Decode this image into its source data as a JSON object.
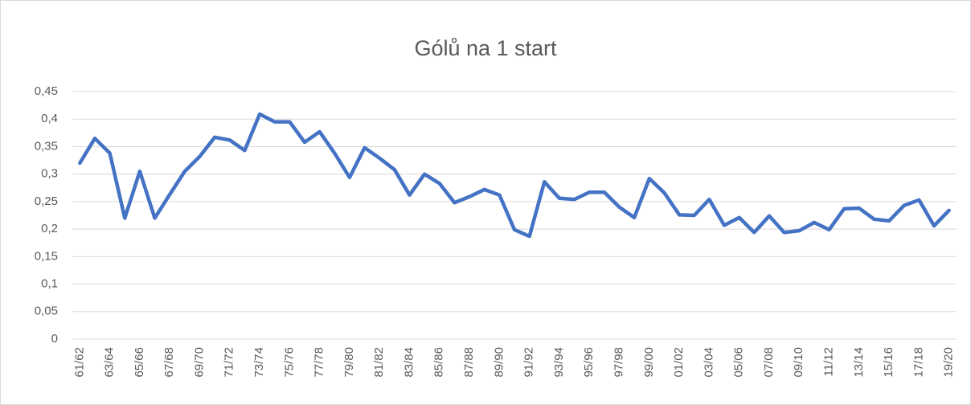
{
  "chart_data": {
    "type": "line",
    "title": "Gólů na 1 start",
    "categories": [
      "61/62",
      null,
      "63/64",
      null,
      "65/66",
      null,
      "67/68",
      null,
      "69/70",
      null,
      "71/72",
      null,
      "73/74",
      null,
      "75/76",
      null,
      "77/78",
      null,
      "79/80",
      null,
      "81/82",
      null,
      "83/84",
      null,
      "85/86",
      null,
      "87/88",
      null,
      "89/90",
      null,
      "91/92",
      null,
      "93/94",
      null,
      "95/96",
      null,
      "97/98",
      null,
      "99/00",
      null,
      "01/02",
      null,
      "03/04",
      null,
      "05/06",
      null,
      "07/08",
      null,
      "09/10",
      null,
      "11/12",
      null,
      "13/14",
      null,
      "15/16",
      null,
      "17/18",
      null,
      "19/20"
    ],
    "series": [
      {
        "name": "Gólů na 1 start",
        "color": "#4472c4",
        "values": [
          0.32,
          0.365,
          0.338,
          0.22,
          0.305,
          0.22,
          0.263,
          0.305,
          0.332,
          0.367,
          0.362,
          0.343,
          0.409,
          0.395,
          0.395,
          0.358,
          0.377,
          0.338,
          0.294,
          0.348,
          0.329,
          0.308,
          0.262,
          0.3,
          0.283,
          0.248,
          0.259,
          0.272,
          0.262,
          0.199,
          0.187,
          0.286,
          0.256,
          0.254,
          0.267,
          0.267,
          0.24,
          0.221,
          0.292,
          0.266,
          0.226,
          0.225,
          0.254,
          0.207,
          0.221,
          0.194,
          0.224,
          0.194,
          0.197,
          0.212,
          0.199,
          0.237,
          0.238,
          0.218,
          0.215,
          0.243,
          0.253,
          0.206,
          0.234
        ]
      }
    ],
    "ylim": [
      0,
      0.45
    ],
    "yticks": [
      0,
      {
        "value": 0.05,
        "label": "0,05"
      },
      {
        "value": 0.1,
        "label": "0,1"
      },
      {
        "value": 0.15,
        "label": "0,15"
      },
      {
        "value": 0.2,
        "label": "0,2"
      },
      {
        "value": 0.25,
        "label": "0,25"
      },
      {
        "value": 0.3,
        "label": "0,3"
      },
      {
        "value": 0.35,
        "label": "0,35"
      },
      {
        "value": 0.4,
        "label": "0,4"
      },
      {
        "value": 0.45,
        "label": "0,45"
      }
    ],
    "grid": true
  }
}
